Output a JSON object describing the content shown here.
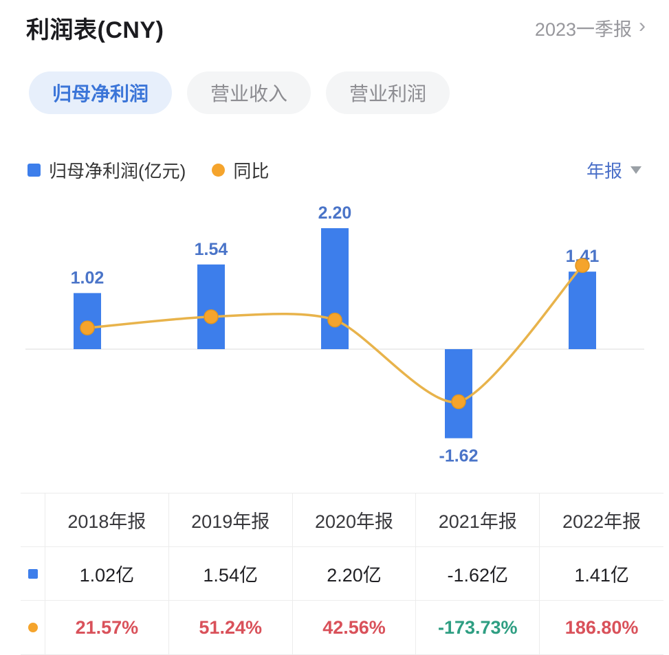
{
  "header": {
    "title": "利润表(CNY)",
    "period_link": "2023一季报",
    "chevron": "›"
  },
  "tabs": [
    {
      "label": "归母净利润",
      "active": true
    },
    {
      "label": "营业收入",
      "active": false
    },
    {
      "label": "营业利润",
      "active": false
    }
  ],
  "legend": {
    "bar_label": "归母净利润(亿元)",
    "line_label": "同比",
    "period_select": "年报"
  },
  "colors": {
    "bar": "#3D7EEB",
    "bar_label": "#4A74C8",
    "line": "#E8B34B",
    "marker": "#F5A42C",
    "marker_edge": "#E2961F",
    "axis": "#e7e7e7",
    "up": "#D9515A",
    "down": "#2E9E82"
  },
  "chart_data": {
    "type": "bar+line",
    "categories": [
      "2018年报",
      "2019年报",
      "2020年报",
      "2021年报",
      "2022年报"
    ],
    "series": [
      {
        "name": "归母净利润(亿元)",
        "type": "bar",
        "values": [
          1.02,
          1.54,
          2.2,
          -1.62,
          1.41
        ]
      },
      {
        "name": "同比",
        "type": "line",
        "unit": "%",
        "values": [
          21.57,
          51.24,
          42.56,
          -173.73,
          186.8
        ]
      }
    ],
    "data_labels": [
      "1.02",
      "1.54",
      "2.20",
      "-1.62",
      "1.41"
    ],
    "layout": {
      "x_axis_labels_visible": false,
      "grid": false,
      "zero_line": true,
      "legend_position": "top-left"
    }
  },
  "table": {
    "headers": [
      "2018年报",
      "2019年报",
      "2020年报",
      "2021年报",
      "2022年报"
    ],
    "net_profit": [
      "1.02亿",
      "1.54亿",
      "2.20亿",
      "-1.62亿",
      "1.41亿"
    ],
    "yoy": [
      {
        "text": "21.57%",
        "color": "#D9515A"
      },
      {
        "text": "51.24%",
        "color": "#D9515A"
      },
      {
        "text": "42.56%",
        "color": "#D9515A"
      },
      {
        "text": "-173.73%",
        "color": "#2E9E82"
      },
      {
        "text": "186.80%",
        "color": "#D9515A"
      }
    ]
  }
}
